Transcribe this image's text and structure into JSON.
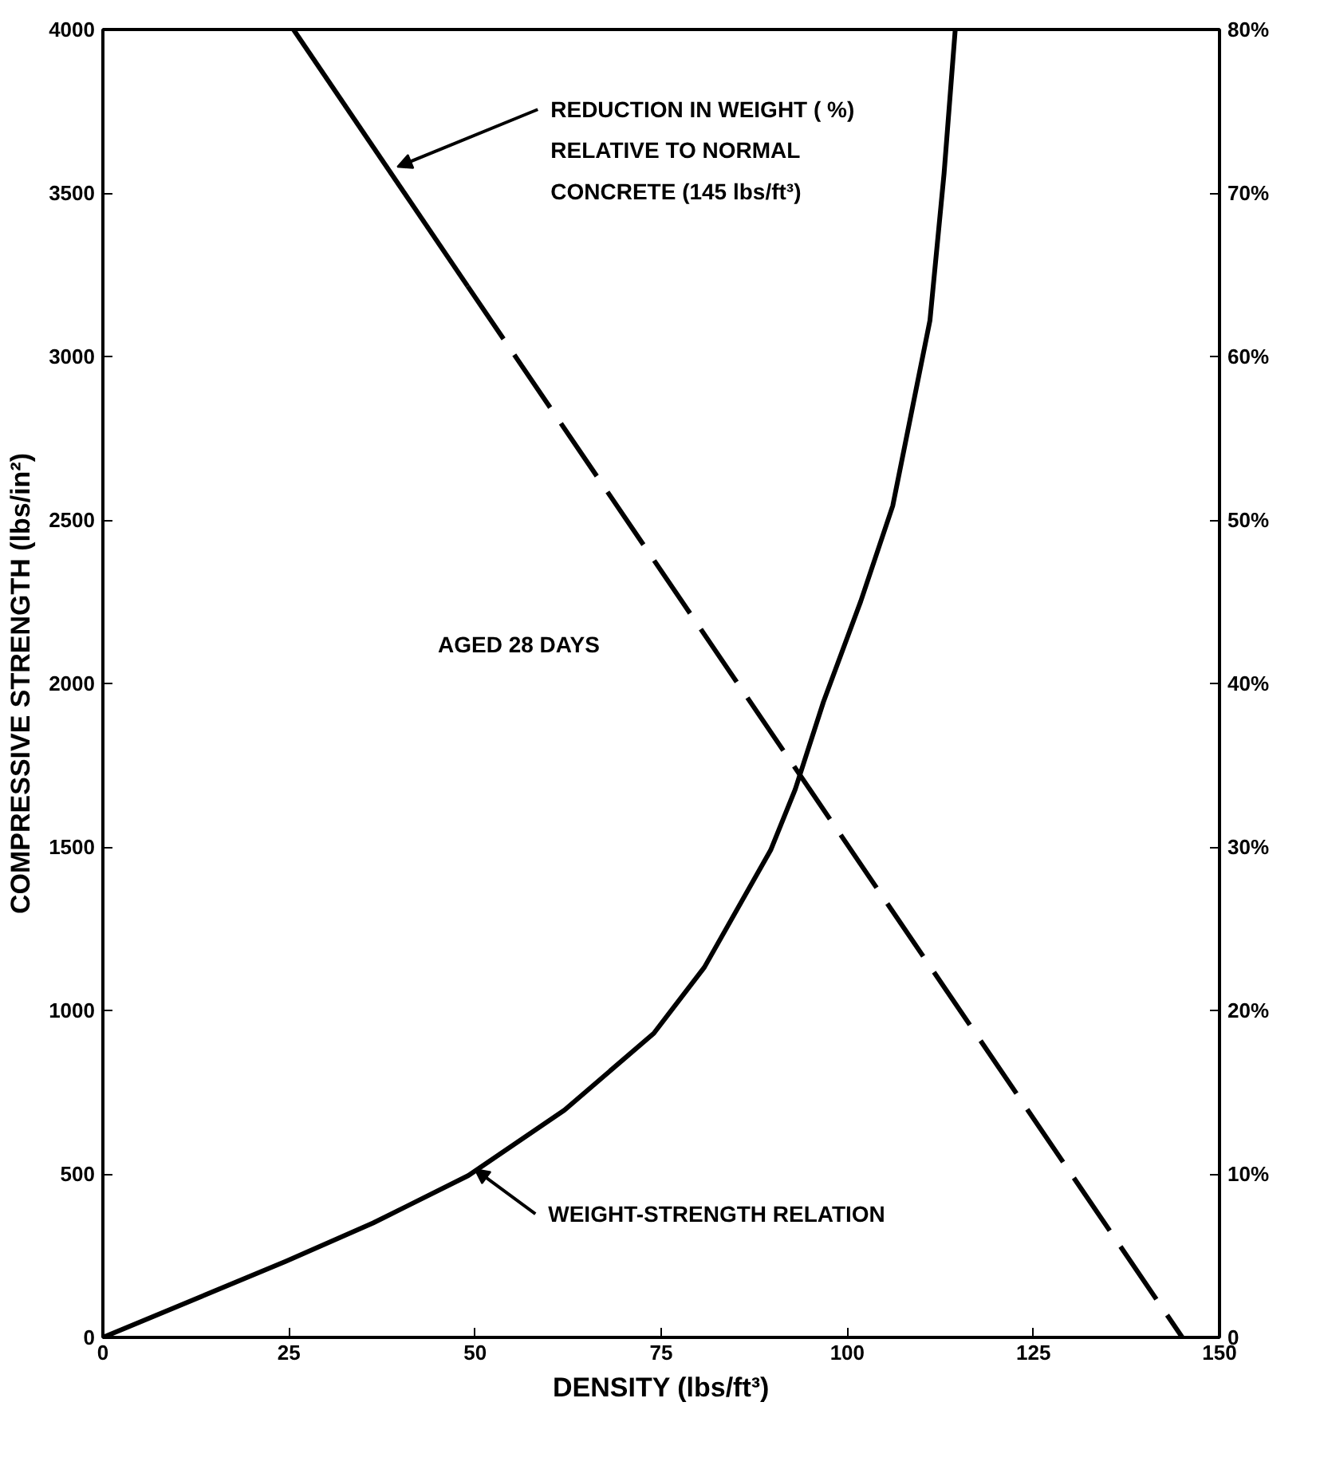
{
  "chart_data": {
    "type": "line",
    "xlabel": "DENSITY (lbs/ft³)",
    "ylabel": "COMPRESSIVE STRENGTH (lbs/in²)",
    "xlim": [
      0,
      150
    ],
    "xticks": [
      0,
      25,
      50,
      75,
      100,
      125,
      150
    ],
    "ylim": [
      0,
      4000
    ],
    "yticks": [
      0,
      500,
      1000,
      1500,
      2000,
      2500,
      3000,
      3500,
      4000
    ],
    "y2lim": [
      0,
      80
    ],
    "y2ticks": [
      0,
      {
        "value": 10,
        "label": "10%"
      },
      {
        "value": 20,
        "label": "20%"
      },
      {
        "value": 30,
        "label": "30%"
      },
      {
        "value": 40,
        "label": "40%"
      },
      {
        "value": 50,
        "label": "50%"
      },
      {
        "value": 60,
        "label": "60%"
      },
      {
        "value": 70,
        "label": "70%"
      },
      {
        "value": 80,
        "label": "80%"
      }
    ],
    "marker": "none",
    "series": [
      {
        "color": "#000000",
        "line_style": "solid",
        "x": [
          0,
          24.6,
          36.3,
          49.1,
          62,
          74,
          80.8,
          89.7,
          93,
          96.8,
          101.8,
          106.1,
          111.1,
          113,
          114.5
        ],
        "values": [
          0,
          233,
          350,
          495,
          695,
          930,
          1132,
          1490,
          1676,
          1944,
          2251,
          2543,
          3110,
          3560,
          4000
        ]
      },
      {
        "color": "#000000",
        "line_style": "solid",
        "axis": "y2",
        "x": [
          25.6,
          49
        ],
        "values": [
          80,
          64.3
        ]
      },
      {
        "color": "#000000",
        "line_style": "dashed",
        "axis": "y2",
        "x": [
          49,
          145
        ],
        "values": [
          64.3,
          0
        ]
      }
    ],
    "annotations": [
      "REDUCTION IN WEIGHT ( %)\nRELATIVE TO NORMAL\nCONCRETE (145 lbs/ft³)",
      "AGED 28 DAYS",
      {
        "text": "WEIGHT-STRENGTH RELATION",
        "x": 49.1,
        "y": 495
      }
    ]
  }
}
